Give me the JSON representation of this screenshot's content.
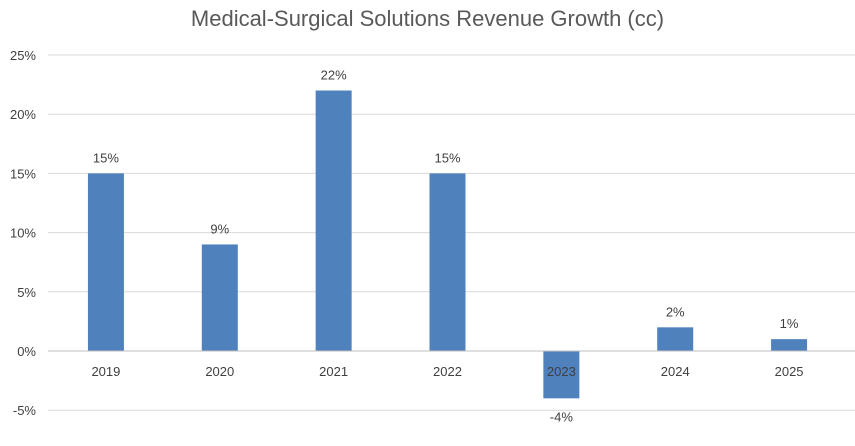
{
  "chart_data": {
    "type": "bar",
    "title": "Medical-Surgical Solutions Revenue Growth (cc)",
    "xlabel": "",
    "ylabel": "",
    "categories": [
      "2019",
      "2020",
      "2021",
      "2022",
      "2023",
      "2024",
      "2025"
    ],
    "series": [
      {
        "values": [
          15,
          9,
          22,
          15,
          -4,
          2,
          1
        ]
      }
    ],
    "data_labels": [
      "15%",
      "9%",
      "22%",
      "15%",
      "-4%",
      "2%",
      "1%"
    ],
    "y_ticks": [
      -5,
      0,
      5,
      10,
      15,
      20,
      25
    ],
    "y_tick_labels": [
      "-5%",
      "0%",
      "5%",
      "10%",
      "15%",
      "20%",
      "25%"
    ],
    "ylim": [
      -5,
      25
    ],
    "grid": true,
    "legend": "none",
    "colors": {
      "bar": "#4f81bd",
      "grid": "#d9d9d9",
      "axis": "#bfbfbf",
      "text": "#404040",
      "title": "#595959"
    }
  }
}
